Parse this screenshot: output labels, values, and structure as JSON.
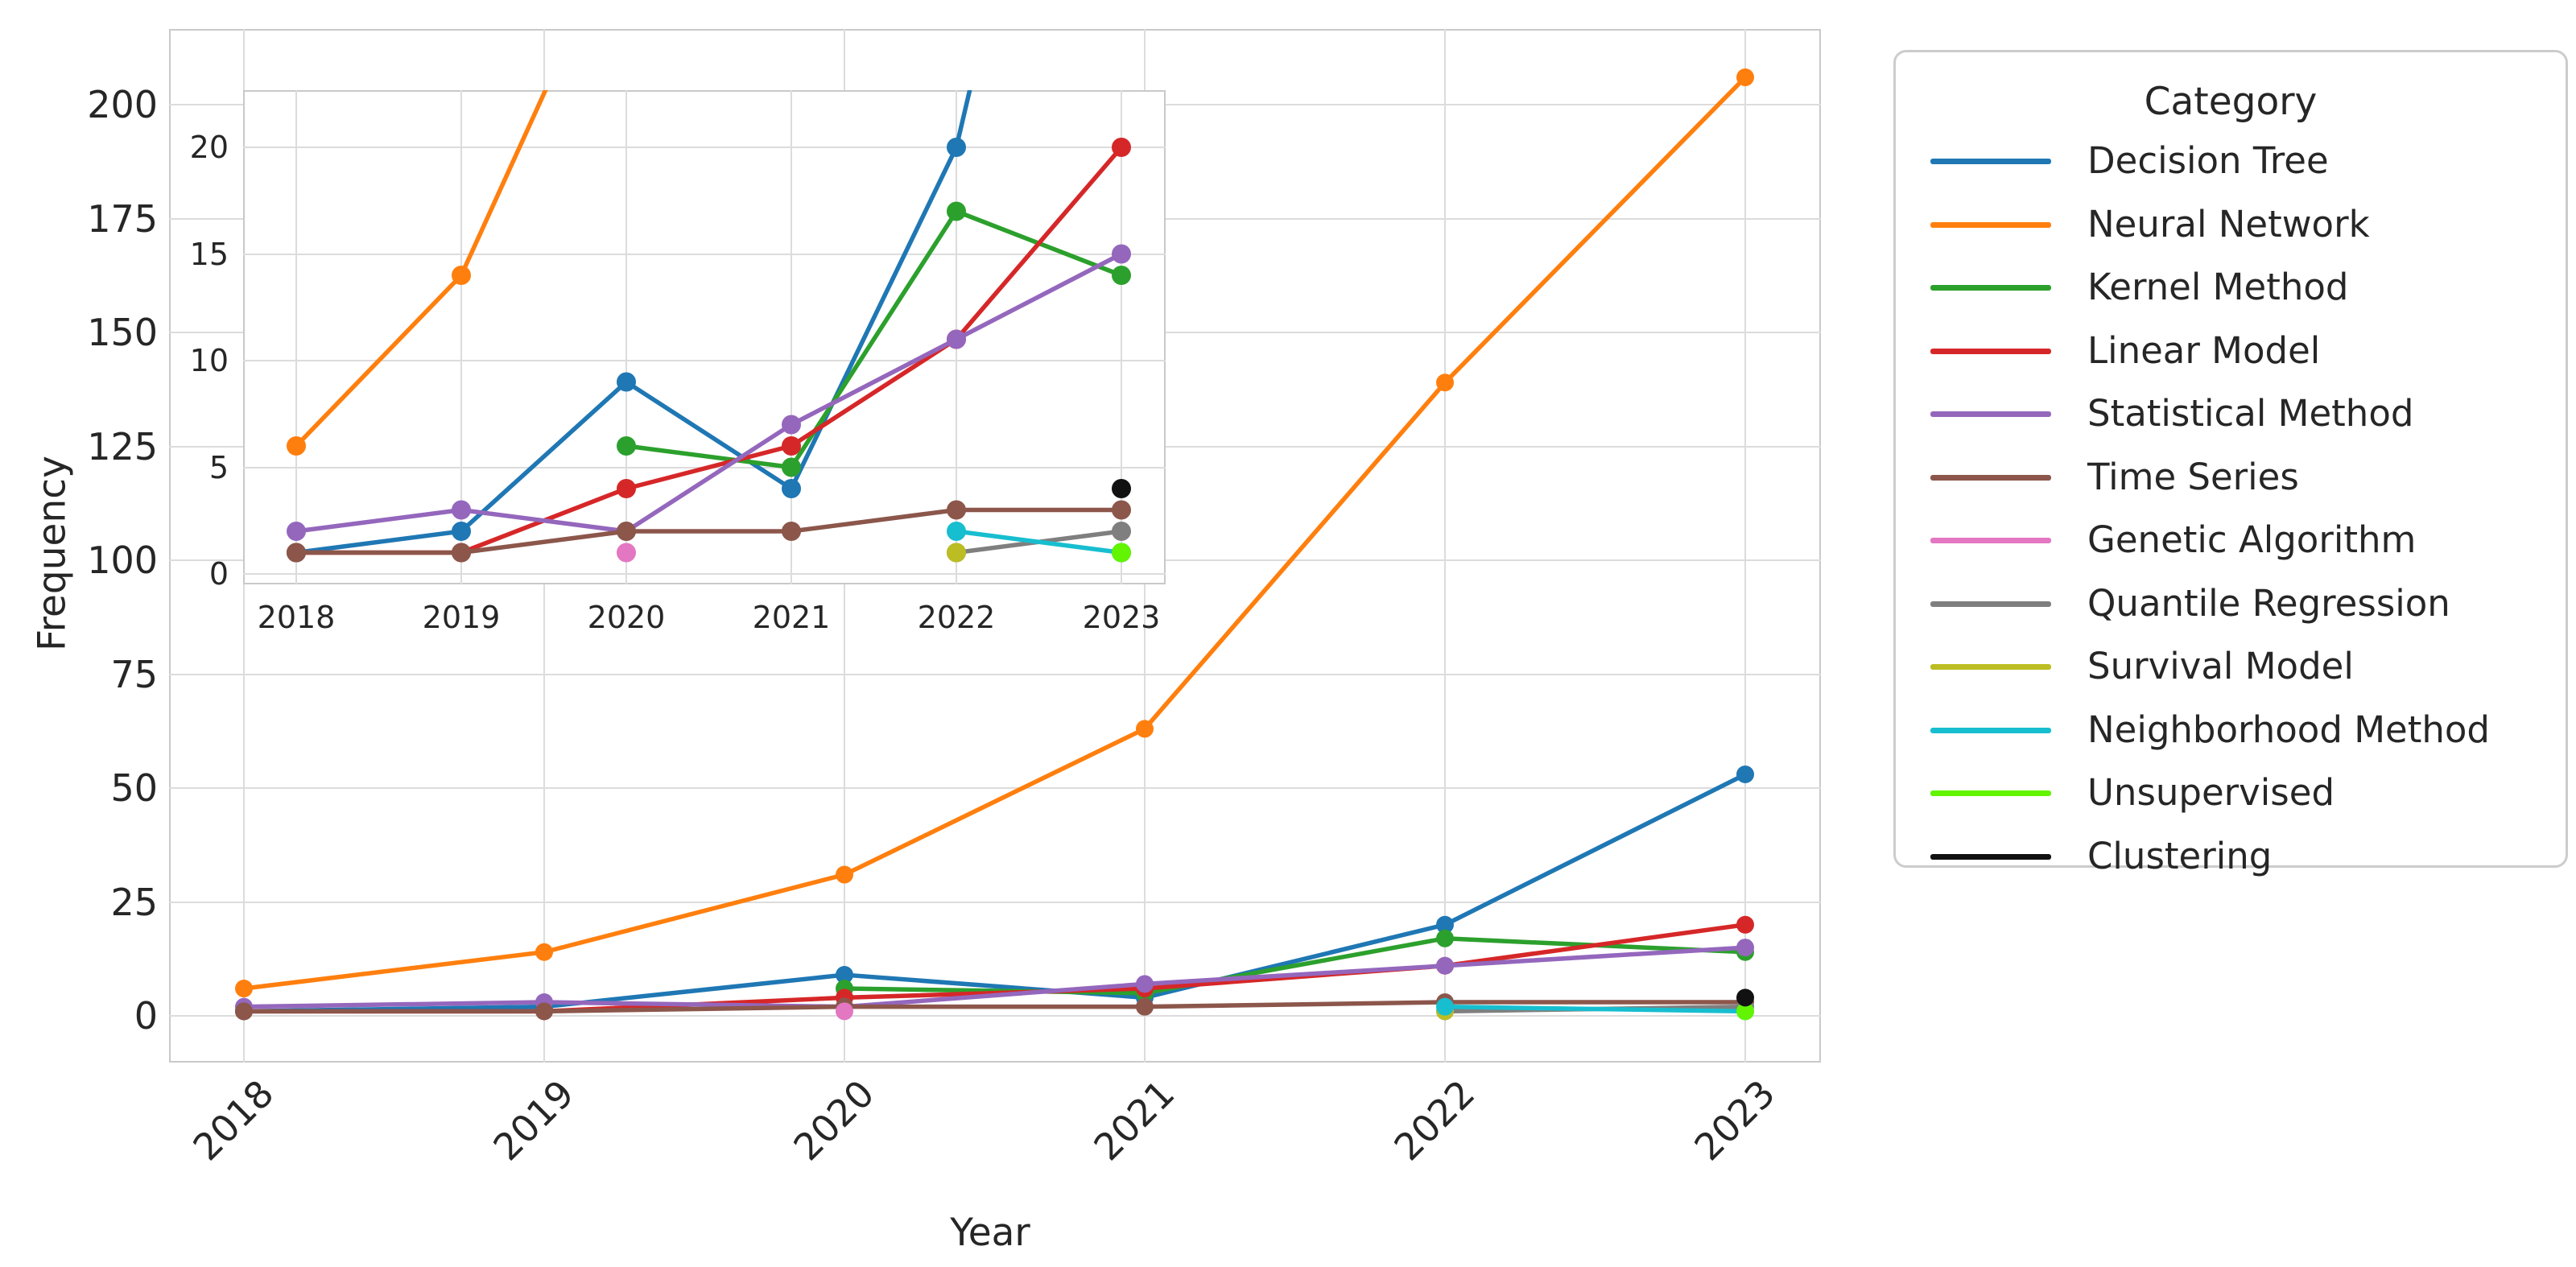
{
  "figure": {
    "background": "#ffffff",
    "text_color": "#262626",
    "grid_color": "#dcdcdc",
    "spine_color": "#c9c9c9"
  },
  "chart_data": {
    "type": "line",
    "title": "",
    "xlabel": "Year",
    "ylabel": "Frequency",
    "x": [
      2018,
      2019,
      2020,
      2021,
      2022,
      2023
    ],
    "x_tick_labels": [
      "2018",
      "2019",
      "2020",
      "2021",
      "2022",
      "2023"
    ],
    "main_axis": {
      "yticks": [
        0,
        25,
        50,
        75,
        100,
        125,
        150,
        175,
        200
      ],
      "ylim": [
        -10,
        217
      ],
      "grid": true,
      "x_tick_rotation": 45
    },
    "inset_axis": {
      "yticks": [
        0,
        5,
        10,
        15,
        20
      ],
      "ylim": [
        -1,
        22.7
      ],
      "grid": true,
      "description": "inset zoom of low-frequency region"
    },
    "legend": {
      "title": "Category",
      "position": "right"
    },
    "series": [
      {
        "name": "Decision Tree",
        "color": "#1f77b4",
        "values": [
          1,
          2,
          9,
          4,
          20,
          53
        ]
      },
      {
        "name": "Neural Network",
        "color": "#ff7f0e",
        "values": [
          6,
          14,
          31,
          63,
          139,
          206
        ]
      },
      {
        "name": "Kernel Method",
        "color": "#2ca02c",
        "values": [
          1,
          null,
          6,
          5,
          17,
          14
        ]
      },
      {
        "name": "Linear Model",
        "color": "#d62728",
        "values": [
          1,
          1,
          4,
          6,
          11,
          20
        ]
      },
      {
        "name": "Statistical Method",
        "color": "#9467bd",
        "values": [
          2,
          3,
          2,
          7,
          11,
          15
        ]
      },
      {
        "name": "Time Series",
        "color": "#8c564b",
        "values": [
          1,
          1,
          2,
          2,
          3,
          3
        ]
      },
      {
        "name": "Genetic Algorithm",
        "color": "#e377c2",
        "values": [
          null,
          null,
          1,
          null,
          null,
          null
        ]
      },
      {
        "name": "Quantile Regression",
        "color": "#7f7f7f",
        "values": [
          null,
          null,
          null,
          null,
          1,
          2
        ]
      },
      {
        "name": "Survival Model",
        "color": "#bcbd22",
        "values": [
          null,
          null,
          null,
          null,
          1,
          null
        ]
      },
      {
        "name": "Neighborhood Method",
        "color": "#17becf",
        "values": [
          null,
          null,
          null,
          null,
          2,
          1
        ]
      },
      {
        "name": "Unsupervised",
        "color": "#62f400",
        "values": [
          null,
          null,
          null,
          null,
          null,
          1
        ]
      },
      {
        "name": "Clustering",
        "color": "#111111",
        "values": [
          null,
          null,
          null,
          null,
          null,
          4
        ]
      }
    ]
  }
}
